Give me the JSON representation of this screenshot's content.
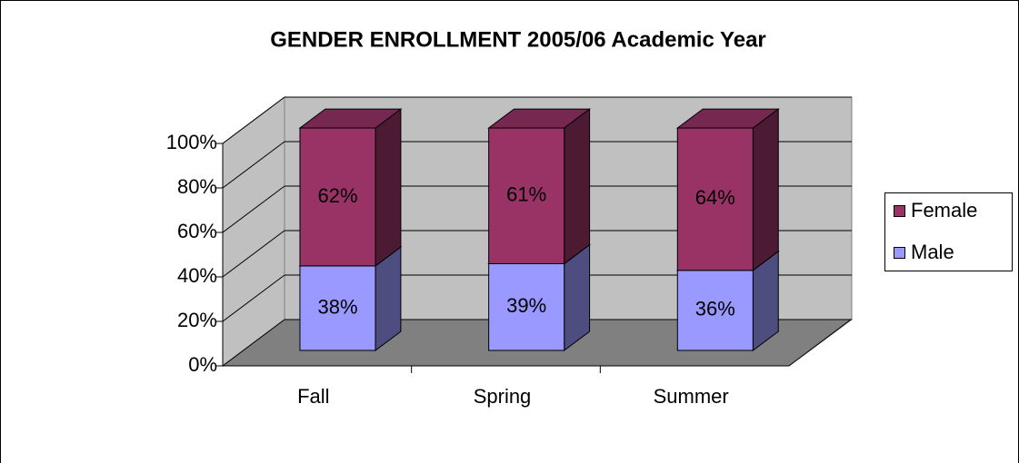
{
  "chart_data": {
    "type": "bar3d_stacked",
    "title": "GENDER ENROLLMENT 2005/06 Academic Year",
    "categories": [
      "Fall",
      "Spring",
      "Summer"
    ],
    "series": [
      {
        "name": "Male",
        "color": "#9999ff",
        "values": [
          38,
          39,
          36
        ],
        "value_labels": [
          "38%",
          "39%",
          "36%"
        ]
      },
      {
        "name": "Female",
        "color": "#993366",
        "values": [
          62,
          61,
          64
        ],
        "value_labels": [
          "62%",
          "61%",
          "64%"
        ]
      }
    ],
    "ylim": [
      0,
      100
    ],
    "yticks": [
      {
        "value": 0,
        "label": "0%"
      },
      {
        "value": 20,
        "label": "20%"
      },
      {
        "value": 40,
        "label": "40%"
      },
      {
        "value": 60,
        "label": "60%"
      },
      {
        "value": 80,
        "label": "80%"
      },
      {
        "value": 100,
        "label": "100%"
      }
    ],
    "grid": true,
    "legend": "right"
  }
}
